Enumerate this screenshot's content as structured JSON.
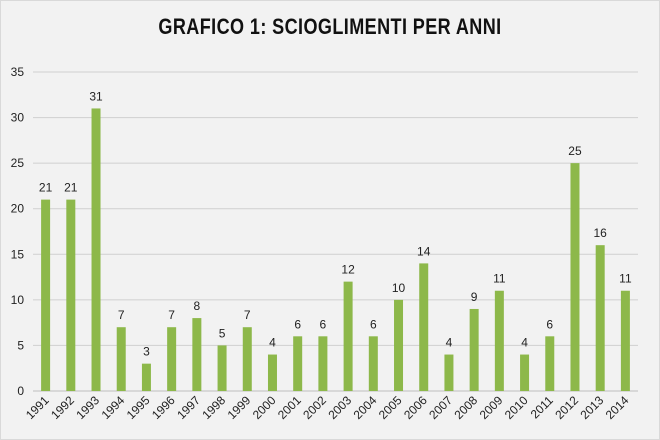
{
  "chart_data": {
    "type": "bar",
    "title": "GRAFICO 1: SCIOGLIMENTI PER ANNI",
    "categories": [
      "1991",
      "1992",
      "1993",
      "1994",
      "1995",
      "1996",
      "1997",
      "1998",
      "1999",
      "2000",
      "2001",
      "2002",
      "2003",
      "2004",
      "2005",
      "2006",
      "2007",
      "2008",
      "2009",
      "2010",
      "2011",
      "2012",
      "2013",
      "2014"
    ],
    "values": [
      21,
      21,
      31,
      7,
      3,
      7,
      8,
      5,
      7,
      4,
      6,
      6,
      12,
      6,
      10,
      14,
      4,
      9,
      11,
      4,
      6,
      25,
      16,
      11
    ],
    "ylim": [
      0,
      35
    ],
    "yticks": [
      0,
      5,
      10,
      15,
      20,
      25,
      30,
      35
    ],
    "grid": true,
    "data_labels": true,
    "bar_color": "#8db84a",
    "grid_color": "#d0d0d0"
  }
}
